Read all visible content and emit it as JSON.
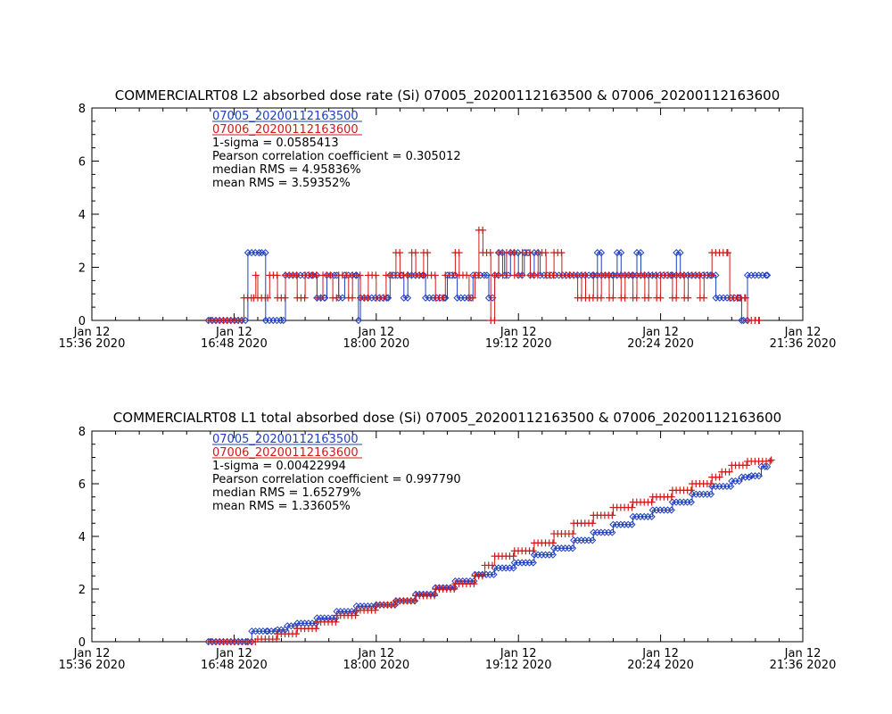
{
  "colors": {
    "series1": "#1f3fbf",
    "series2": "#d11a1a",
    "axis": "#000000",
    "background": "#ffffff"
  },
  "x_tick_labels": [
    {
      "line1": "Jan 12",
      "line2": "15:36 2020"
    },
    {
      "line1": "Jan 12",
      "line2": "16:48 2020"
    },
    {
      "line1": "Jan 12",
      "line2": "18:00 2020"
    },
    {
      "line1": "Jan 12",
      "line2": "19:12 2020"
    },
    {
      "line1": "Jan 12",
      "line2": "20:24 2020"
    },
    {
      "line1": "Jan 12",
      "line2": "21:36 2020"
    }
  ],
  "chart_data": [
    {
      "type": "line",
      "title": "COMMERCIALRT08 L2 absorbed dose rate (Si) 07005_20200112163500 & 07006_20200112163600",
      "xlabel": "",
      "ylabel": "",
      "x_unit": "time (Jan 12 2020)",
      "xlim": [
        "15:36",
        "21:36"
      ],
      "ylim": [
        0,
        8
      ],
      "y_ticks": [
        "0",
        "2",
        "4",
        "6",
        "8"
      ],
      "grid": false,
      "legend_placement": "top-left",
      "stats": [
        "1-sigma = 0.0585413",
        "Pearson correlation coefficient = 0.305012",
        "median RMS = 4.95836%",
        "mean RMS = 3.59352%"
      ],
      "series": [
        {
          "name": "07005_20200112163500",
          "marker": "diamond",
          "color": "#1f3fbf",
          "line": "step",
          "points": [
            [
              "16:35",
              0
            ],
            [
              "16:50",
              0
            ],
            [
              "16:55",
              2.55
            ],
            [
              "17:02",
              2.55
            ],
            [
              "17:04",
              0
            ],
            [
              "17:13",
              0
            ],
            [
              "17:14",
              1.7
            ],
            [
              "17:28",
              1.7
            ],
            [
              "17:30",
              0.85
            ],
            [
              "17:34",
              0.85
            ],
            [
              "17:35",
              1.7
            ],
            [
              "17:40",
              1.7
            ],
            [
              "17:41",
              0.85
            ],
            [
              "17:44",
              1.7
            ],
            [
              "17:50",
              1.7
            ],
            [
              "17:51",
              0
            ],
            [
              "17:52",
              0.85
            ],
            [
              "18:06",
              0.85
            ],
            [
              "18:07",
              1.7
            ],
            [
              "18:13",
              1.7
            ],
            [
              "18:14",
              0.85
            ],
            [
              "18:16",
              1.7
            ],
            [
              "18:24",
              1.7
            ],
            [
              "18:25",
              0.85
            ],
            [
              "18:35",
              0.85
            ],
            [
              "18:36",
              1.7
            ],
            [
              "18:40",
              1.7
            ],
            [
              "18:41",
              0.85
            ],
            [
              "18:48",
              0.85
            ],
            [
              "18:49",
              1.7
            ],
            [
              "18:56",
              1.7
            ],
            [
              "18:57",
              0.85
            ],
            [
              "19:00",
              1.7
            ],
            [
              "19:02",
              2.55
            ],
            [
              "19:05",
              1.7
            ],
            [
              "19:08",
              2.55
            ],
            [
              "19:12",
              1.7
            ],
            [
              "19:15",
              2.55
            ],
            [
              "19:18",
              1.7
            ],
            [
              "19:20",
              2.55
            ],
            [
              "19:23",
              1.7
            ],
            [
              "19:50",
              1.7
            ],
            [
              "19:52",
              2.55
            ],
            [
              "19:54",
              1.7
            ],
            [
              "20:00",
              1.7
            ],
            [
              "20:02",
              2.55
            ],
            [
              "20:04",
              1.7
            ],
            [
              "20:10",
              1.7
            ],
            [
              "20:12",
              2.55
            ],
            [
              "20:14",
              1.7
            ],
            [
              "20:30",
              1.7
            ],
            [
              "20:32",
              2.55
            ],
            [
              "20:34",
              1.7
            ],
            [
              "20:50",
              1.7
            ],
            [
              "20:52",
              0.85
            ],
            [
              "21:04",
              0.85
            ],
            [
              "21:05",
              0
            ],
            [
              "21:06",
              0
            ],
            [
              "21:08",
              1.7
            ],
            [
              "21:18",
              1.7
            ]
          ]
        },
        {
          "name": "07006_20200112163600",
          "marker": "plus",
          "color": "#d11a1a",
          "line": "step",
          "points": [
            [
              "16:35",
              0
            ],
            [
              "16:52",
              0
            ],
            [
              "16:53",
              0.85
            ],
            [
              "16:58",
              0.85
            ],
            [
              "16:59",
              1.7
            ],
            [
              "17:00",
              0.85
            ],
            [
              "17:05",
              0.85
            ],
            [
              "17:06",
              1.7
            ],
            [
              "17:10",
              0.85
            ],
            [
              "17:14",
              1.7
            ],
            [
              "17:20",
              0.85
            ],
            [
              "17:24",
              1.7
            ],
            [
              "17:30",
              0.85
            ],
            [
              "17:33",
              1.7
            ],
            [
              "17:38",
              0.85
            ],
            [
              "17:41",
              1.7
            ],
            [
              "17:46",
              0.85
            ],
            [
              "17:48",
              1.7
            ],
            [
              "17:52",
              0.85
            ],
            [
              "17:56",
              1.7
            ],
            [
              "18:00",
              0.85
            ],
            [
              "18:05",
              1.7
            ],
            [
              "18:08",
              1.7
            ],
            [
              "18:10",
              2.55
            ],
            [
              "18:12",
              1.7
            ],
            [
              "18:16",
              1.7
            ],
            [
              "18:18",
              2.55
            ],
            [
              "18:20",
              1.7
            ],
            [
              "18:24",
              2.55
            ],
            [
              "18:26",
              1.7
            ],
            [
              "18:30",
              0.85
            ],
            [
              "18:35",
              1.7
            ],
            [
              "18:40",
              2.55
            ],
            [
              "18:42",
              1.7
            ],
            [
              "18:47",
              0.85
            ],
            [
              "18:50",
              1.7
            ],
            [
              "18:52",
              3.4
            ],
            [
              "18:54",
              2.55
            ],
            [
              "18:58",
              0
            ],
            [
              "19:00",
              1.7
            ],
            [
              "19:02",
              2.55
            ],
            [
              "19:04",
              1.7
            ],
            [
              "19:06",
              2.55
            ],
            [
              "19:10",
              1.7
            ],
            [
              "19:14",
              2.55
            ],
            [
              "19:18",
              1.7
            ],
            [
              "19:22",
              2.55
            ],
            [
              "19:26",
              1.7
            ],
            [
              "19:30",
              2.55
            ],
            [
              "19:34",
              1.7
            ],
            [
              "19:38",
              1.7
            ],
            [
              "19:42",
              0.85
            ],
            [
              "19:44",
              1.7
            ],
            [
              "19:46",
              0.85
            ],
            [
              "19:50",
              1.7
            ],
            [
              "19:52",
              0.85
            ],
            [
              "19:54",
              1.7
            ],
            [
              "19:58",
              0.85
            ],
            [
              "20:00",
              1.7
            ],
            [
              "20:04",
              0.85
            ],
            [
              "20:06",
              1.7
            ],
            [
              "20:10",
              0.85
            ],
            [
              "20:12",
              1.7
            ],
            [
              "20:16",
              0.85
            ],
            [
              "20:18",
              1.7
            ],
            [
              "20:22",
              0.85
            ],
            [
              "20:24",
              1.7
            ],
            [
              "20:30",
              0.85
            ],
            [
              "20:32",
              1.7
            ],
            [
              "20:36",
              0.85
            ],
            [
              "20:38",
              1.7
            ],
            [
              "20:44",
              0.85
            ],
            [
              "20:46",
              1.7
            ],
            [
              "20:50",
              2.55
            ],
            [
              "20:58",
              2.55
            ],
            [
              "20:59",
              0.85
            ],
            [
              "21:07",
              0.85
            ],
            [
              "21:08",
              0
            ],
            [
              "21:14",
              0
            ]
          ]
        }
      ]
    },
    {
      "type": "line",
      "title": "COMMERCIALRT08 L1 total absorbed dose (Si) 07005_20200112163500 & 07006_20200112163600",
      "xlabel": "",
      "ylabel": "",
      "x_unit": "time (Jan 12 2020)",
      "xlim": [
        "15:36",
        "21:36"
      ],
      "ylim": [
        0,
        8
      ],
      "y_ticks": [
        "0",
        "2",
        "4",
        "6",
        "8"
      ],
      "grid": false,
      "legend_placement": "top-left",
      "stats": [
        "1-sigma = 0.00422994",
        "Pearson correlation coefficient = 0.997790",
        "median RMS = 1.65279%",
        "mean RMS = 1.33605%"
      ],
      "series": [
        {
          "name": "07005_20200112163500",
          "marker": "diamond",
          "color": "#1f3fbf",
          "line": "step",
          "points": [
            [
              "16:35",
              0
            ],
            [
              "16:55",
              0
            ],
            [
              "16:57",
              0.4
            ],
            [
              "17:05",
              0.4
            ],
            [
              "17:10",
              0.45
            ],
            [
              "17:15",
              0.6
            ],
            [
              "17:20",
              0.7
            ],
            [
              "17:30",
              0.9
            ],
            [
              "17:40",
              1.15
            ],
            [
              "17:50",
              1.35
            ],
            [
              "18:00",
              1.4
            ],
            [
              "18:10",
              1.55
            ],
            [
              "18:20",
              1.8
            ],
            [
              "18:30",
              2.05
            ],
            [
              "18:40",
              2.3
            ],
            [
              "18:50",
              2.55
            ],
            [
              "19:00",
              2.8
            ],
            [
              "19:10",
              3.0
            ],
            [
              "19:20",
              3.3
            ],
            [
              "19:30",
              3.55
            ],
            [
              "19:40",
              3.85
            ],
            [
              "19:50",
              4.15
            ],
            [
              "20:00",
              4.45
            ],
            [
              "20:10",
              4.75
            ],
            [
              "20:20",
              5.0
            ],
            [
              "20:30",
              5.3
            ],
            [
              "20:40",
              5.6
            ],
            [
              "20:50",
              5.9
            ],
            [
              "21:00",
              6.1
            ],
            [
              "21:05",
              6.25
            ],
            [
              "21:10",
              6.3
            ],
            [
              "21:15",
              6.65
            ],
            [
              "21:18",
              6.65
            ]
          ]
        },
        {
          "name": "07006_20200112163600",
          "marker": "plus",
          "color": "#d11a1a",
          "line": "step",
          "points": [
            [
              "16:35",
              0
            ],
            [
              "16:55",
              0
            ],
            [
              "17:00",
              0.1
            ],
            [
              "17:10",
              0.3
            ],
            [
              "17:20",
              0.5
            ],
            [
              "17:30",
              0.75
            ],
            [
              "17:40",
              1.0
            ],
            [
              "17:50",
              1.2
            ],
            [
              "18:00",
              1.4
            ],
            [
              "18:10",
              1.55
            ],
            [
              "18:20",
              1.75
            ],
            [
              "18:30",
              2.0
            ],
            [
              "18:40",
              2.2
            ],
            [
              "18:50",
              2.5
            ],
            [
              "18:55",
              2.9
            ],
            [
              "19:00",
              3.25
            ],
            [
              "19:10",
              3.45
            ],
            [
              "19:20",
              3.75
            ],
            [
              "19:30",
              4.1
            ],
            [
              "19:40",
              4.5
            ],
            [
              "19:50",
              4.8
            ],
            [
              "20:00",
              5.1
            ],
            [
              "20:10",
              5.3
            ],
            [
              "20:20",
              5.5
            ],
            [
              "20:30",
              5.75
            ],
            [
              "20:40",
              6.0
            ],
            [
              "20:50",
              6.25
            ],
            [
              "20:55",
              6.45
            ],
            [
              "21:00",
              6.7
            ],
            [
              "21:08",
              6.85
            ],
            [
              "21:20",
              6.9
            ]
          ]
        }
      ]
    }
  ]
}
